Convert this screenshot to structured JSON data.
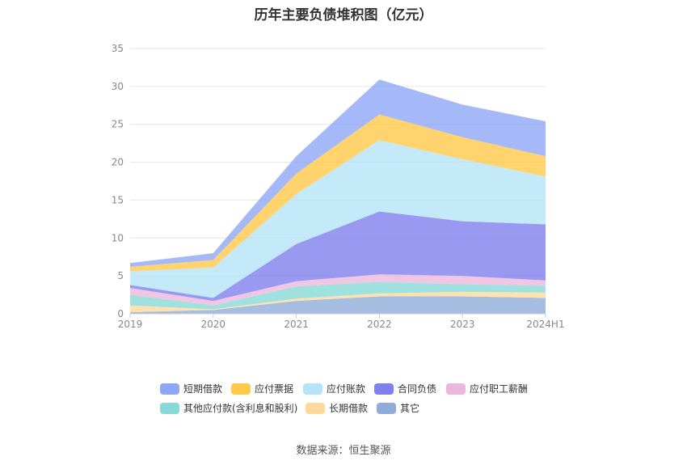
{
  "title": "历年主要负债堆积图（亿元）",
  "source": "数据来源：恒生聚源",
  "chart_data": {
    "type": "area",
    "stacked": true,
    "categories": [
      "2019",
      "2020",
      "2021",
      "2022",
      "2023",
      "2024H1"
    ],
    "ylim": [
      0,
      35
    ],
    "yticks": [
      0,
      5,
      10,
      15,
      20,
      25,
      30,
      35
    ],
    "grid": true,
    "legend_position": "bottom",
    "series": [
      {
        "name": "其它",
        "color": "#8fadd8",
        "values": [
          0.2,
          0.5,
          1.7,
          2.3,
          2.3,
          2.1
        ]
      },
      {
        "name": "长期借款",
        "color": "#ffd99b",
        "values": [
          0.9,
          0.1,
          0.3,
          0.4,
          0.6,
          0.7
        ]
      },
      {
        "name": "其他应付款(含利息和股利)",
        "color": "#86d9d6",
        "values": [
          1.4,
          0.5,
          1.6,
          1.5,
          1.0,
          0.9
        ]
      },
      {
        "name": "应付职工薪酬",
        "color": "#ebb8dd",
        "values": [
          0.9,
          0.6,
          0.7,
          1.0,
          1.1,
          0.7
        ]
      },
      {
        "name": "合同负债",
        "color": "#8080ee",
        "values": [
          0.4,
          0.4,
          4.9,
          8.3,
          7.2,
          7.4
        ]
      },
      {
        "name": "应付账款",
        "color": "#b5e3f7",
        "values": [
          1.8,
          4.0,
          6.6,
          9.4,
          8.2,
          6.3
        ]
      },
      {
        "name": "应付票据",
        "color": "#ffc94a",
        "values": [
          0.6,
          1.0,
          2.7,
          3.4,
          2.9,
          2.7
        ]
      },
      {
        "name": "短期借款",
        "color": "#8ea7f6",
        "values": [
          0.5,
          0.9,
          2.3,
          4.6,
          4.3,
          4.6
        ]
      }
    ],
    "legend_order": [
      "短期借款",
      "应付票据",
      "应付账款",
      "合同负债",
      "应付职工薪酬",
      "其他应付款(含利息和股利)",
      "长期借款",
      "其它"
    ]
  }
}
